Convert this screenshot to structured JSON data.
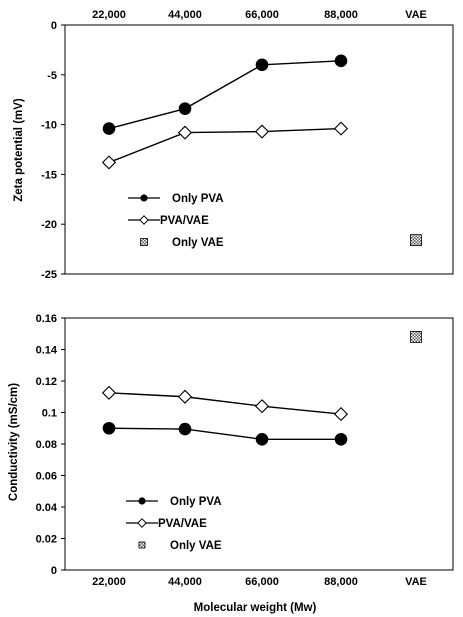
{
  "x_axis": {
    "label": "Molecular weight (Mw)",
    "categories": [
      "22,000",
      "44,000",
      "66,000",
      "88,000",
      "VAE"
    ]
  },
  "chart_data": [
    {
      "type": "line",
      "ylabel": "Zeta potential (mV)",
      "xlabel": "",
      "ylim": [
        -25,
        0
      ],
      "yticks": [
        0,
        -5,
        -10,
        -15,
        -20,
        -25
      ],
      "ytick_labels": [
        "0",
        "-5",
        "-10",
        "-15",
        "-20",
        "-25"
      ],
      "grid": false,
      "legend": "lower-left",
      "x_tick_position": "top",
      "categories": [
        "22,000",
        "44,000",
        "66,000",
        "88,000",
        "VAE"
      ],
      "series": [
        {
          "name": "Only PVA",
          "marker": "filled-circle",
          "values": [
            -10.4,
            -8.4,
            -4.0,
            -3.6,
            null
          ]
        },
        {
          "name": "PVA/VAE",
          "marker": "open-diamond",
          "values": [
            -13.8,
            -10.8,
            -10.7,
            -10.4,
            null
          ]
        },
        {
          "name": "Only VAE",
          "marker": "hatched-square",
          "values": [
            null,
            null,
            null,
            null,
            -21.6
          ]
        }
      ]
    },
    {
      "type": "line",
      "ylabel": "Conductivity (mS/cm)",
      "xlabel": "Molecular weight (Mw)",
      "ylim": [
        0,
        0.16
      ],
      "yticks": [
        0,
        0.02,
        0.04,
        0.06,
        0.08,
        0.1,
        0.12,
        0.14,
        0.16
      ],
      "ytick_labels": [
        "0",
        "0.02",
        "0.04",
        "0.06",
        "0.08",
        "0.1",
        "0.12",
        "0.14",
        "0.16"
      ],
      "grid": false,
      "legend": "lower-left",
      "x_tick_position": "bottom",
      "categories": [
        "22,000",
        "44,000",
        "66,000",
        "88,000",
        "VAE"
      ],
      "series": [
        {
          "name": "Only PVA",
          "marker": "filled-circle",
          "values": [
            0.09,
            0.0895,
            0.083,
            0.083,
            null
          ]
        },
        {
          "name": "PVA/VAE",
          "marker": "open-diamond",
          "values": [
            0.1125,
            0.11,
            0.104,
            0.099,
            null
          ]
        },
        {
          "name": "Only VAE",
          "marker": "hatched-square",
          "values": [
            null,
            null,
            null,
            null,
            0.148
          ]
        }
      ]
    }
  ],
  "colors": {
    "line": "#000000",
    "background": "#ffffff",
    "hatch_fill": "#bdbdbd"
  }
}
